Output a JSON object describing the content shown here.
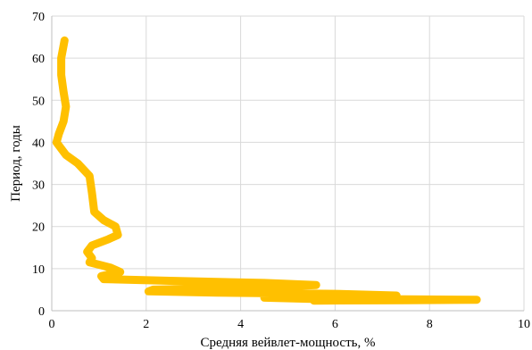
{
  "chart_data": {
    "type": "line",
    "title": "",
    "xlabel": "Средняя вейвлет-мощность, %",
    "ylabel": "Период, годы",
    "xlim": [
      0,
      10
    ],
    "ylim": [
      0,
      70
    ],
    "x_ticks": [
      "0",
      "2",
      "4",
      "6",
      "8",
      "10"
    ],
    "y_ticks": [
      "0",
      "10",
      "20",
      "30",
      "40",
      "50",
      "60",
      "70"
    ],
    "grid": true,
    "legend": "none",
    "series": [
      {
        "color": "#ffc000",
        "points": [
          [
            0.27,
            64.2
          ],
          [
            0.2,
            60.0
          ],
          [
            0.2,
            56.0
          ],
          [
            0.25,
            52.0
          ],
          [
            0.3,
            48.5
          ],
          [
            0.25,
            45.0
          ],
          [
            0.15,
            42.0
          ],
          [
            0.1,
            40.0
          ],
          [
            0.3,
            37.0
          ],
          [
            0.55,
            35.0
          ],
          [
            0.8,
            32.0
          ],
          [
            0.85,
            28.0
          ],
          [
            0.9,
            23.5
          ],
          [
            1.1,
            21.5
          ],
          [
            1.35,
            20.0
          ],
          [
            1.4,
            18.0
          ],
          [
            1.2,
            17.0
          ],
          [
            0.85,
            15.5
          ],
          [
            0.75,
            14.0
          ],
          [
            0.85,
            12.5
          ],
          [
            0.8,
            11.5
          ],
          [
            1.05,
            10.8
          ],
          [
            1.25,
            10.2
          ],
          [
            1.45,
            9.2
          ],
          [
            1.05,
            8.2
          ],
          [
            1.1,
            7.5
          ],
          [
            2.5,
            7.1
          ],
          [
            4.5,
            6.6
          ],
          [
            5.6,
            6.1
          ],
          [
            4.2,
            5.5
          ],
          [
            2.15,
            5.0
          ],
          [
            2.05,
            4.6
          ],
          [
            3.5,
            4.3
          ],
          [
            6.0,
            4.0
          ],
          [
            7.3,
            3.6
          ],
          [
            6.0,
            3.4
          ],
          [
            4.5,
            3.1
          ],
          [
            5.5,
            2.8
          ],
          [
            7.5,
            2.7
          ],
          [
            9.0,
            2.6
          ],
          [
            7.5,
            2.5
          ],
          [
            5.55,
            2.4
          ]
        ]
      }
    ]
  }
}
